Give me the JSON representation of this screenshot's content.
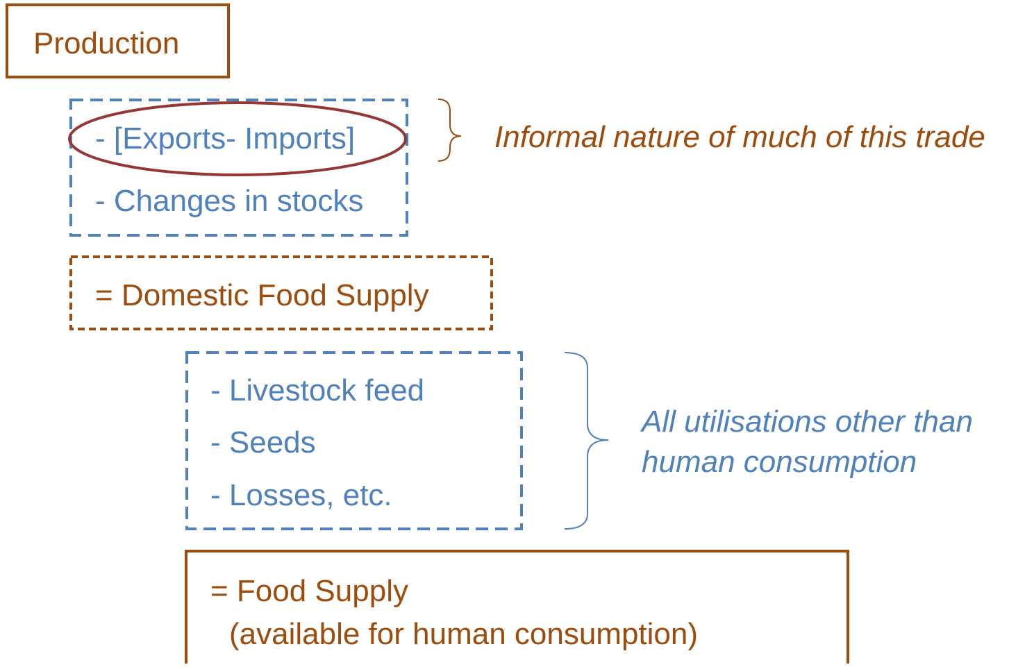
{
  "production": "Production",
  "trade": {
    "items": [
      "- [Exports- Imports]",
      "- Changes in stocks"
    ],
    "note": "Informal nature of much of this trade"
  },
  "domestic_supply": "= Domestic Food Supply",
  "utilisations": {
    "items": [
      "- Livestock feed",
      "- Seeds",
      "- Losses, etc."
    ],
    "note": [
      "All utilisations other than",
      "human consumption"
    ]
  },
  "food_supply": [
    "= Food Supply",
    "(available for human consumption)"
  ]
}
